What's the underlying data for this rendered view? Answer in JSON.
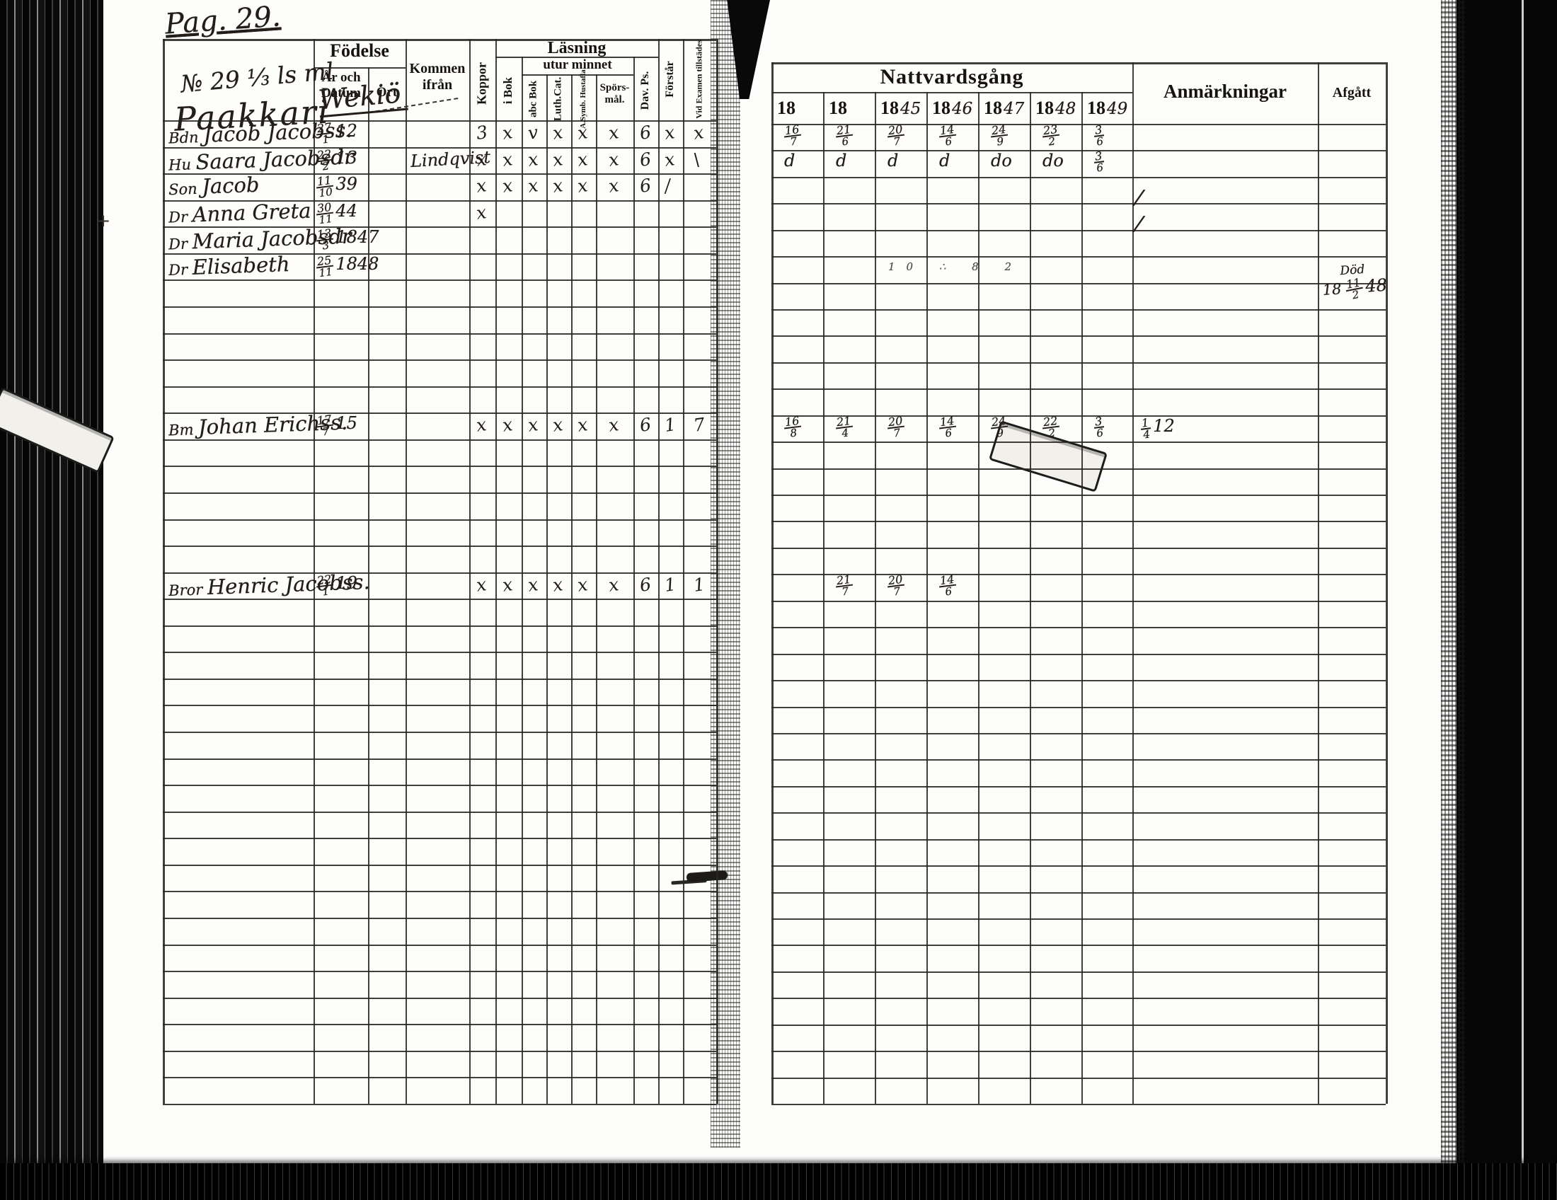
{
  "left_page": {
    "page_label": "Pag. 29.",
    "household_number": "№ 29 ⅓ ls ml",
    "farm_name": "Paakkari",
    "ort_entry": "Wekiö",
    "margin_mark": "+",
    "headers": {
      "fodelse": "Födelse",
      "ar_och_datum": "År och Datum",
      "ort": "Ort",
      "kommen_ifran": "Kommen ifrån",
      "koppor": "Koppor",
      "lasning": "Läsning",
      "i_bok": "i Bok",
      "utur_minnet": "utur minnet",
      "abc_bok": "abc Bok",
      "luth_cat": "Luth.Cat.",
      "symb_hustafla": "A.Symb. Hustafla",
      "sporsmal": "Spörs-mål.",
      "dav_ps": "Dav. Ps.",
      "forstar": "Förstår",
      "vid_examen": "Vid Examen tillstädes"
    },
    "rows": [
      {
        "r": 0,
        "prefix": "Bdn",
        "name": "Jacob Jacobss.",
        "date": "27/1 12",
        "from": "",
        "marks": [
          "3",
          "x",
          "v",
          "x",
          "x",
          "x",
          "6",
          "x",
          "x"
        ]
      },
      {
        "r": 1,
        "prefix": "Hu",
        "name": "Saara Jacobsdr",
        "date": "22/2 13",
        "from": "Lindqvist",
        "marks": [
          "x",
          "x",
          "x",
          "x",
          "x",
          "x",
          "6",
          "x",
          "\\"
        ]
      },
      {
        "r": 2,
        "prefix": "Son",
        "name": "Jacob",
        "date": "11/10 39",
        "from": "",
        "marks": [
          "x",
          "x",
          "x",
          "x",
          "x",
          "x",
          "6",
          "/",
          ""
        ]
      },
      {
        "r": 3,
        "prefix": "Dr",
        "name": "Anna Greta",
        "date": "30/11 44",
        "from": "",
        "marks": [
          "x",
          "",
          "",
          "",
          "",
          "",
          "",
          "",
          ""
        ]
      },
      {
        "r": 4,
        "prefix": "Dr",
        "name": "Maria Jacobsdr",
        "date": "13/3 1847",
        "from": "",
        "marks": []
      },
      {
        "r": 5,
        "prefix": "Dr",
        "name": "Elisabeth",
        "date": "25/11 1848",
        "from": "",
        "marks": []
      },
      {
        "r": 11,
        "prefix": "Bm",
        "name": "Johan Erichss.",
        "date": "17/7 15",
        "from": "",
        "marks": [
          "x",
          "x",
          "x",
          "x",
          "x",
          "x",
          "6",
          "1",
          "7"
        ]
      },
      {
        "r": 17,
        "prefix": "Bror",
        "name": "Henric Jacobss.",
        "date": "22/1 19",
        "from": "",
        "marks": [
          "x",
          "x",
          "x",
          "x",
          "x",
          "x",
          "6",
          "1",
          "1"
        ]
      }
    ]
  },
  "right_page": {
    "headers": {
      "nattvardsgang": "Nattvardsgång",
      "anmarkningar": "Anmärkningar",
      "afgatt": "Afgått",
      "years": [
        {
          "printed": "18",
          "hand": ""
        },
        {
          "printed": "18",
          "hand": ""
        },
        {
          "printed": "18",
          "hand": "45"
        },
        {
          "printed": "18",
          "hand": "46"
        },
        {
          "printed": "18",
          "hand": "47"
        },
        {
          "printed": "18",
          "hand": "48"
        },
        {
          "printed": "18",
          "hand": "49"
        }
      ]
    },
    "rows": [
      {
        "r": 0,
        "cells": [
          "16/7",
          "21/6",
          "20/7",
          "14/6",
          "24/9",
          "23/2",
          "3/6"
        ],
        "anm": ""
      },
      {
        "r": 1,
        "cells": [
          "d",
          "d",
          "d",
          "d",
          "do",
          "do",
          "3/6"
        ],
        "anm": ""
      },
      {
        "r": 11,
        "cells": [
          "16/8",
          "21/4",
          "20/7",
          "14/6",
          "24/9",
          "22/2",
          "3/6"
        ],
        "anm": "1/4 12"
      },
      {
        "r": 17,
        "cells": [
          "",
          "21/7",
          "20/7",
          "14/6",
          "",
          "",
          ""
        ],
        "anm": ""
      }
    ],
    "remark_ticks_rows": [
      2,
      3
    ],
    "faint_marks": "10 ∴ 8 2",
    "afgatt_note": {
      "word": "Död",
      "line": "18 11/2 48"
    }
  }
}
